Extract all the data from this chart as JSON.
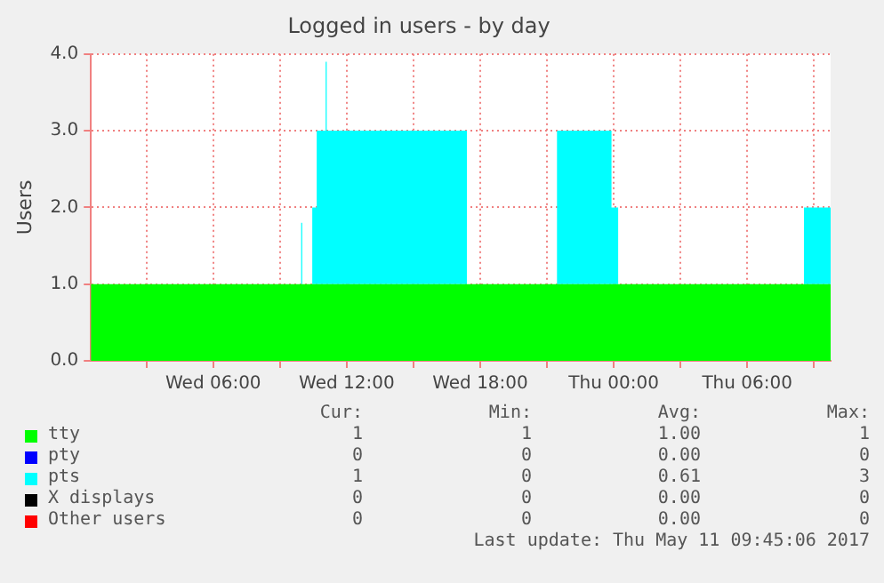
{
  "chart_data": {
    "type": "area",
    "title": "Logged in users - by day",
    "ylabel": "Users",
    "stacked": true,
    "legend": "bottom",
    "grid": true,
    "x": [
      "2017-05-10T00:30",
      "2017-05-10T09:57",
      "2017-05-10T10:00",
      "2017-05-10T10:03",
      "2017-05-10T10:27",
      "2017-05-10T10:30",
      "2017-05-10T10:39",
      "2017-05-10T10:42",
      "2017-05-10T11:03",
      "2017-05-10T11:06",
      "2017-05-10T11:09",
      "2017-05-10T11:12",
      "2017-05-10T17:24",
      "2017-05-10T17:27",
      "2017-05-10T21:27",
      "2017-05-10T21:30",
      "2017-05-10T23:54",
      "2017-05-10T23:57",
      "2017-05-11T00:12",
      "2017-05-11T00:15",
      "2017-05-11T08:33",
      "2017-05-11T08:36",
      "2017-05-11T09:45"
    ],
    "xlim": [
      "2017-05-10T00:30",
      "2017-05-11T09:45"
    ],
    "xticks": [
      {
        "value": "2017-05-10T03:00",
        "label": null
      },
      {
        "value": "2017-05-10T06:00",
        "label": "Wed 06:00"
      },
      {
        "value": "2017-05-10T09:00",
        "label": null
      },
      {
        "value": "2017-05-10T12:00",
        "label": "Wed 12:00"
      },
      {
        "value": "2017-05-10T15:00",
        "label": null
      },
      {
        "value": "2017-05-10T18:00",
        "label": "Wed 18:00"
      },
      {
        "value": "2017-05-10T21:00",
        "label": null
      },
      {
        "value": "2017-05-11T00:00",
        "label": "Thu 00:00"
      },
      {
        "value": "2017-05-11T03:00",
        "label": null
      },
      {
        "value": "2017-05-11T06:00",
        "label": "Thu 06:00"
      },
      {
        "value": "2017-05-11T09:00",
        "label": null
      }
    ],
    "ylim": [
      0,
      4
    ],
    "yticks": [
      {
        "value": 0,
        "label": "0.0"
      },
      {
        "value": 1,
        "label": "1.0"
      },
      {
        "value": 2,
        "label": "2.0"
      },
      {
        "value": 3,
        "label": "3.0"
      },
      {
        "value": 4,
        "label": "4.0"
      }
    ],
    "series": [
      {
        "name": "tty",
        "color": "#00ff00",
        "values": [
          1,
          1,
          1,
          1,
          1,
          1,
          1,
          1,
          1,
          1,
          1,
          1,
          1,
          1,
          1,
          1,
          1,
          1,
          1,
          1,
          1,
          1,
          1
        ]
      },
      {
        "name": "pty",
        "color": "#0000ff",
        "values": [
          null,
          null,
          null,
          null,
          null,
          null,
          null,
          null,
          null,
          null,
          null,
          null,
          null,
          null,
          null,
          null,
          null,
          null,
          null,
          null,
          null,
          null,
          null
        ]
      },
      {
        "name": "pts",
        "color": "#00ffff",
        "values": [
          0,
          0,
          0.8,
          0,
          0,
          1,
          1,
          2,
          2,
          2.9,
          2,
          2,
          2,
          0,
          0,
          2,
          2,
          1,
          1,
          0,
          0,
          1,
          1
        ]
      },
      {
        "name": "X displays",
        "color": "#000000",
        "values": [
          null,
          null,
          null,
          null,
          null,
          null,
          null,
          null,
          null,
          null,
          null,
          null,
          null,
          null,
          null,
          null,
          null,
          null,
          null,
          null,
          null,
          null,
          null
        ]
      },
      {
        "name": "Other users",
        "color": "#ff0000",
        "values": [
          null,
          null,
          null,
          null,
          null,
          null,
          null,
          null,
          null,
          null,
          null,
          null,
          null,
          null,
          null,
          null,
          null,
          null,
          null,
          null,
          null,
          null,
          null
        ]
      }
    ],
    "annotations": [
      "Cur:",
      "Min:",
      "Avg:",
      "Max:",
      "1",
      "1",
      "1.00",
      "1",
      "0",
      "0",
      "0.00",
      "0",
      "1",
      "0",
      "0.61",
      "3",
      "0",
      "0",
      "0.00",
      "0",
      "0",
      "0",
      "0.00",
      "0",
      "Last update: Thu May 11 09:45:06 2017"
    ]
  }
}
